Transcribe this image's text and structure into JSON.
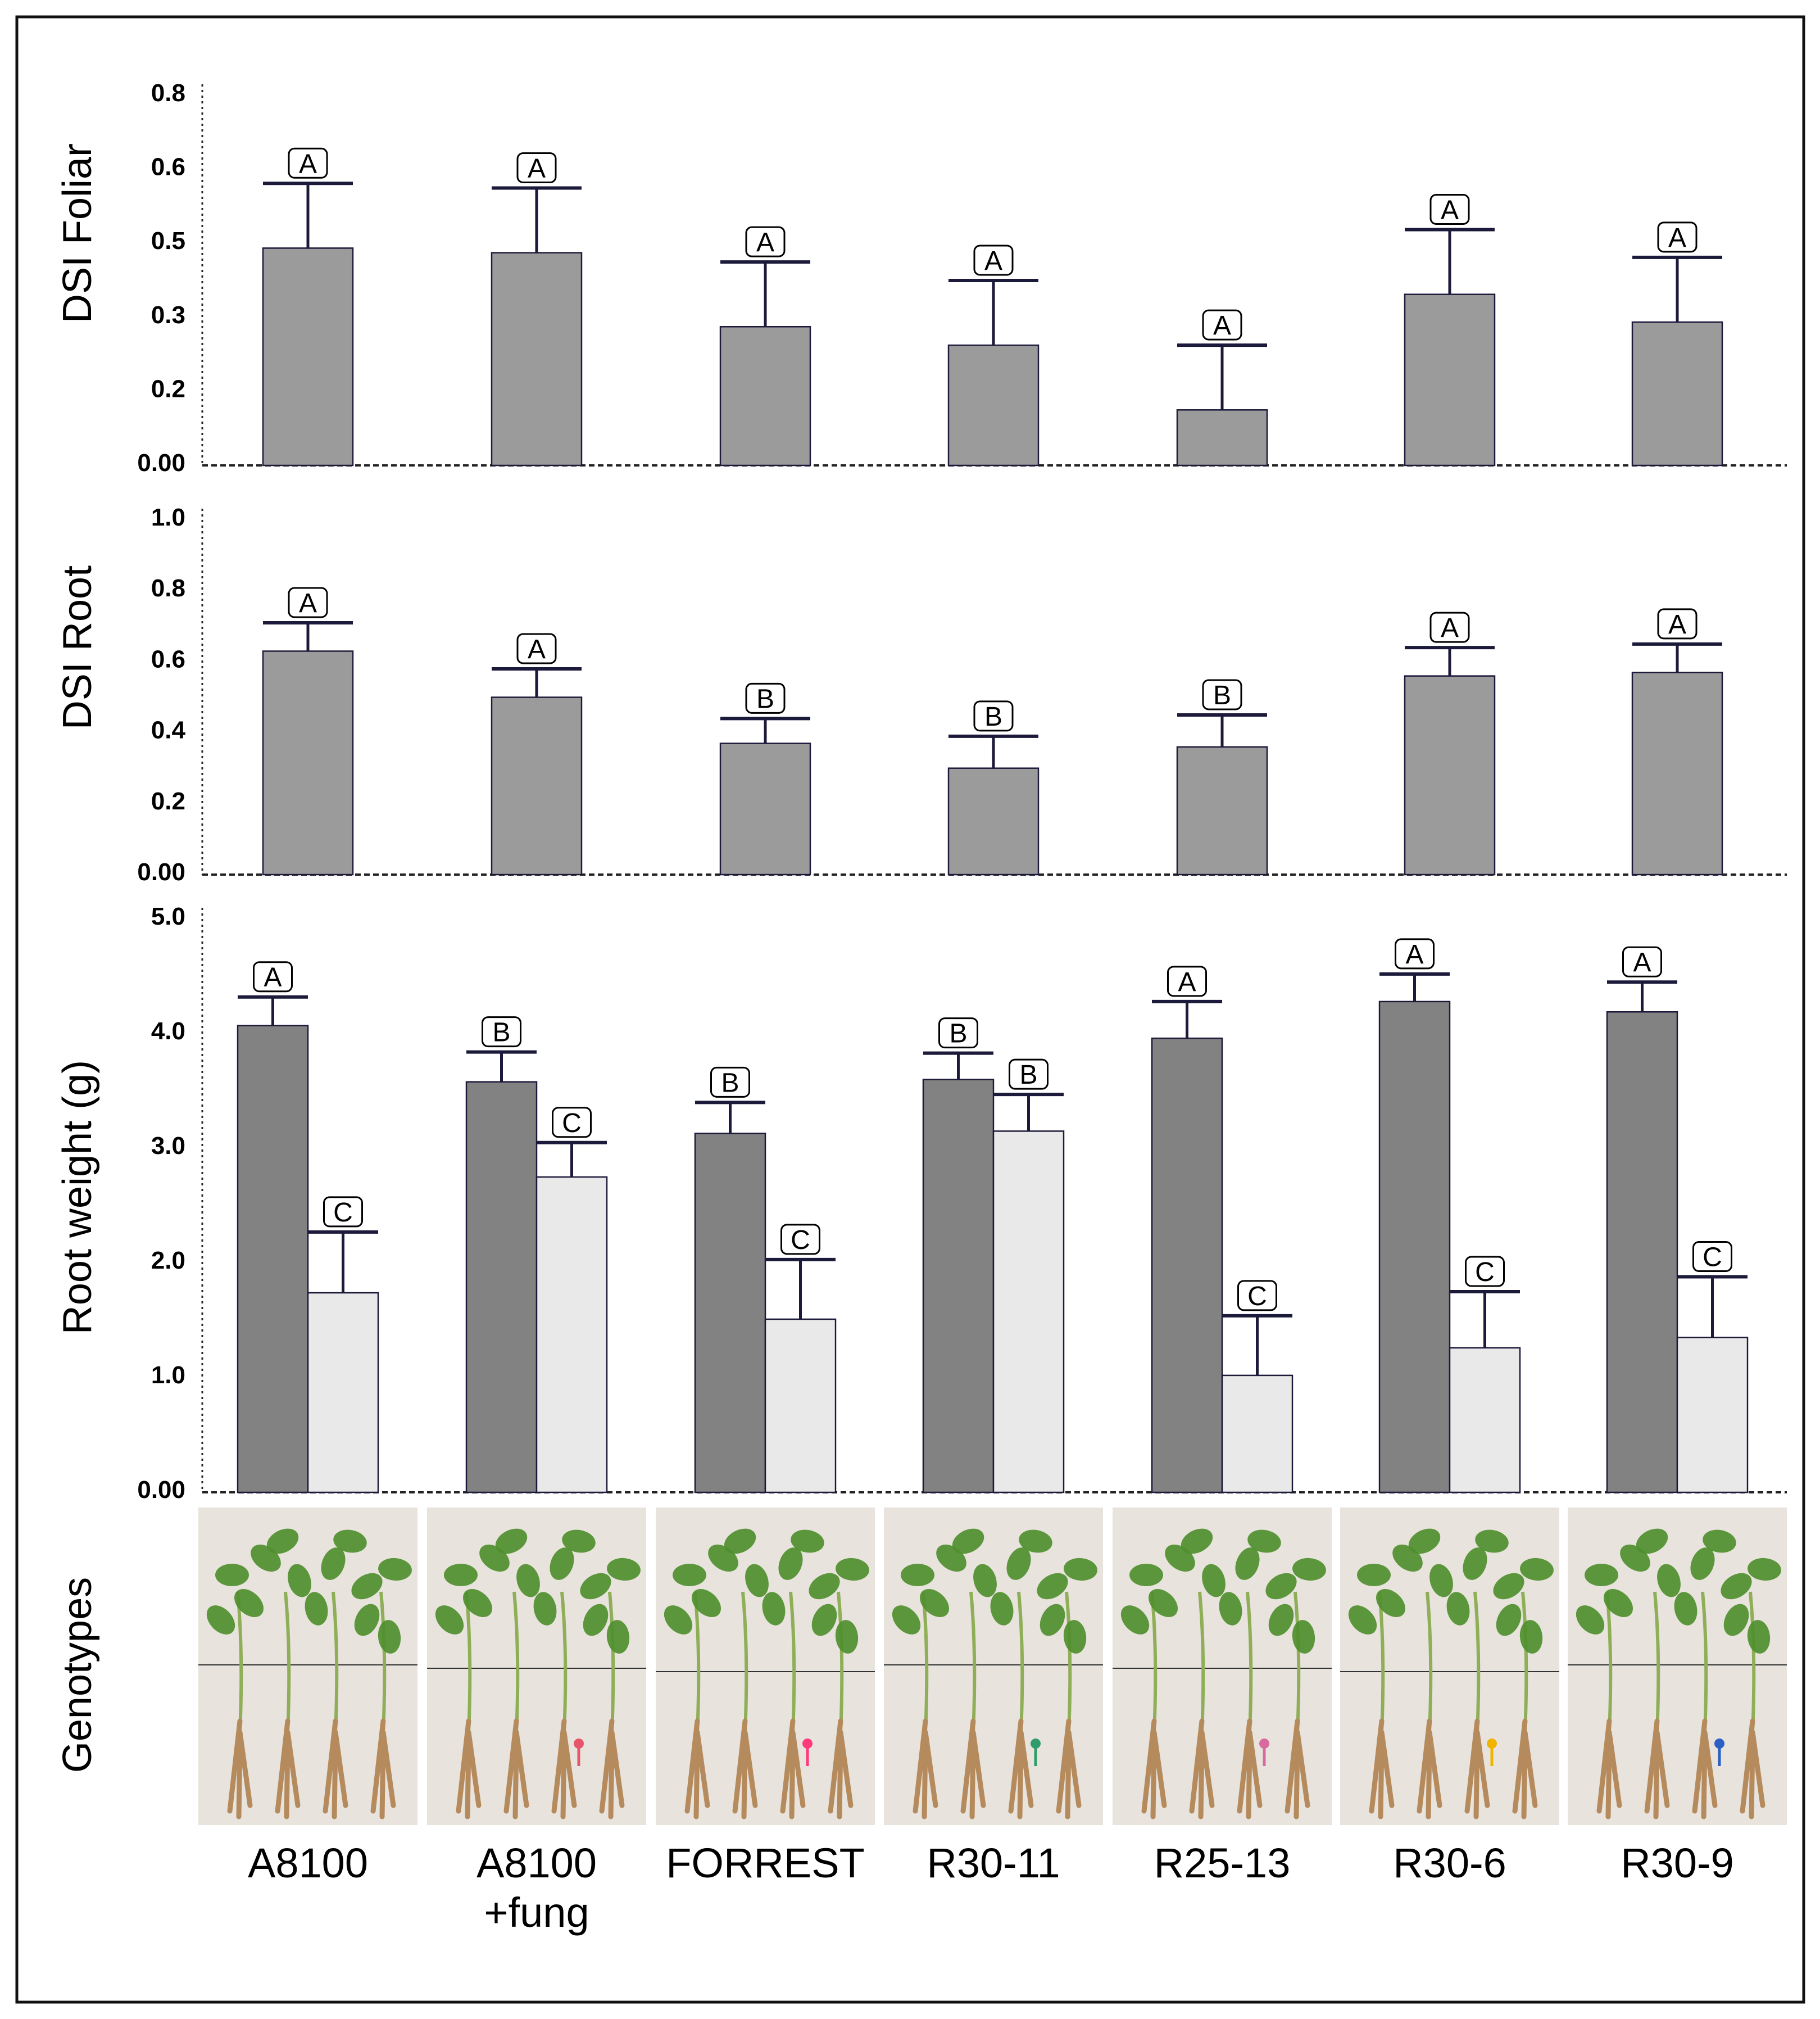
{
  "chart_data": [
    {
      "type": "bar",
      "title": "",
      "xlabel": "",
      "ylabel": "DSI Foliar",
      "ylim": [
        0,
        0.8
      ],
      "yticks": [
        "0.8",
        "0.6",
        "0.5",
        "0.3",
        "0.2",
        "0.00"
      ],
      "categories": [
        "A8100",
        "A8100 +fung",
        "FORREST",
        "R30-11",
        "R25-13",
        "R30-6",
        "R30-9"
      ],
      "series": [
        {
          "name": "DSI Foliar",
          "color": "#9b9b9b",
          "values": [
            0.47,
            0.46,
            0.3,
            0.26,
            0.12,
            0.37,
            0.31
          ],
          "errors": [
            0.14,
            0.14,
            0.14,
            0.14,
            0.14,
            0.14,
            0.14
          ],
          "letters": [
            "A",
            "A",
            "A",
            "A",
            "A",
            "A",
            "A"
          ]
        }
      ]
    },
    {
      "type": "bar",
      "title": "",
      "xlabel": "",
      "ylabel": "DSI Root",
      "ylim": [
        0,
        1.0
      ],
      "yticks": [
        "1.0",
        "0.8",
        "0.6",
        "0.4",
        "0.2",
        "0.00"
      ],
      "categories": [
        "A8100",
        "A8100 +fung",
        "FORREST",
        "R30-11",
        "R25-13",
        "R30-6",
        "R30-9"
      ],
      "series": [
        {
          "name": "DSI Root",
          "color": "#9b9b9b",
          "values": [
            0.63,
            0.5,
            0.37,
            0.3,
            0.36,
            0.56,
            0.57
          ],
          "errors": [
            0.08,
            0.08,
            0.07,
            0.09,
            0.09,
            0.08,
            0.08
          ],
          "letters": [
            "A",
            "A",
            "B",
            "B",
            "B",
            "A",
            "A"
          ]
        }
      ]
    },
    {
      "type": "bar",
      "title": "",
      "xlabel": "",
      "ylabel": "Root weight (g)",
      "ylim": [
        0,
        5.0
      ],
      "yticks": [
        "5.0",
        "4.0",
        "3.0",
        "2.0",
        "1.0",
        "0.00"
      ],
      "categories": [
        "A8100",
        "A8100 +fung",
        "FORREST",
        "R30-11",
        "R25-13",
        "R30-6",
        "R30-9"
      ],
      "series": [
        {
          "name": "dark",
          "color": "#828282",
          "values": [
            4.07,
            3.58,
            3.13,
            3.6,
            3.96,
            4.28,
            4.19
          ],
          "errors": [
            0.25,
            0.26,
            0.27,
            0.23,
            0.32,
            0.24,
            0.26
          ],
          "letters": [
            "A",
            "B",
            "B",
            "B",
            "A",
            "A",
            "A"
          ]
        },
        {
          "name": "light",
          "color": "#e9e9e9",
          "values": [
            1.74,
            2.75,
            1.51,
            3.15,
            1.02,
            1.26,
            1.35
          ],
          "errors": [
            0.53,
            0.3,
            0.52,
            0.32,
            0.52,
            0.49,
            0.53
          ],
          "letters": [
            "C",
            "C",
            "C",
            "B",
            "C",
            "C",
            "C"
          ]
        }
      ]
    }
  ],
  "photos_label": "Genotypes",
  "genotype_labels": [
    [
      "A8100"
    ],
    [
      "A8100",
      "+fung"
    ],
    [
      "FORREST"
    ],
    [
      "R30-11"
    ],
    [
      "R25-13"
    ],
    [
      "R30-6"
    ],
    [
      "R30-9"
    ]
  ],
  "colors": {
    "bar_edge": "#1c1a3a",
    "error_bar": "#1c1a3a",
    "axis": "#222222",
    "photo_bg": "#e8e3dc",
    "leaf": "#4f8f2e",
    "stem": "#8fae58",
    "root": "#b58a5c",
    "tags": [
      "none",
      "#e8546a",
      "#ff3a7a",
      "#2f9c6c",
      "#d96aa0",
      "#f0b400",
      "#2a5fc4"
    ]
  }
}
